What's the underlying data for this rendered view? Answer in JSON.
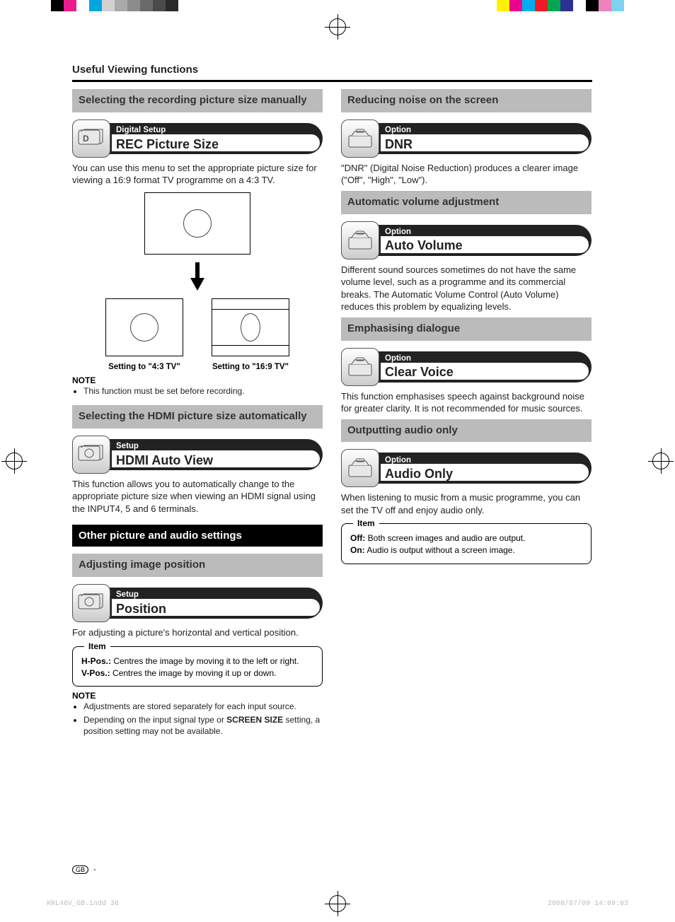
{
  "color_bar": {
    "left_segments": [
      {
        "w": 72,
        "color": "#ffffff"
      },
      {
        "w": 18,
        "color": "#000000"
      },
      {
        "w": 18,
        "color": "#e91e8c"
      },
      {
        "w": 18,
        "color": "#ffffff"
      },
      {
        "w": 18,
        "color": "#00a6e0"
      },
      {
        "w": 18,
        "color": "#d1d1d1"
      },
      {
        "w": 18,
        "color": "#aaaaaa"
      },
      {
        "w": 18,
        "color": "#8c8c8c"
      },
      {
        "w": 18,
        "color": "#6a6a6a"
      },
      {
        "w": 18,
        "color": "#4b4b4b"
      },
      {
        "w": 18,
        "color": "#2a2a2a"
      }
    ],
    "right_segments": [
      {
        "w": 18,
        "color": "#fff200"
      },
      {
        "w": 18,
        "color": "#ec008c"
      },
      {
        "w": 18,
        "color": "#00adef"
      },
      {
        "w": 18,
        "color": "#ed1c24"
      },
      {
        "w": 18,
        "color": "#00a651"
      },
      {
        "w": 18,
        "color": "#2e3192"
      },
      {
        "w": 18,
        "color": "#ffffff"
      },
      {
        "w": 18,
        "color": "#000000"
      },
      {
        "w": 18,
        "color": "#ee82be"
      },
      {
        "w": 18,
        "color": "#7dd2f0"
      },
      {
        "w": 72,
        "color": "#ffffff"
      }
    ]
  },
  "page_title": "Useful Viewing functions",
  "left": {
    "h1": "Selecting the recording picture size manually",
    "pill1": {
      "cat": "Digital Setup",
      "title": "REC Picture Size"
    },
    "p1": "You can use this menu to set the appropriate picture size for viewing a 16:9 format TV programme on a 4:3 TV.",
    "cap1": "Setting to \"4:3 TV\"",
    "cap2": "Setting to \"16:9 TV\"",
    "note1_label": "NOTE",
    "note1_b1": "This function must be set before recording.",
    "h2": "Selecting the HDMI picture size automatically",
    "pill2": {
      "cat": "Setup",
      "title": "HDMI Auto View"
    },
    "p2": "This function allows you to automatically change to the appropriate picture size when viewing an HDMI signal using the INPUT4, 5 and 6 terminals.",
    "h3_black": "Other picture and audio settings",
    "h4": "Adjusting image position",
    "pill3": {
      "cat": "Setup",
      "title": "Position"
    },
    "p3": "For adjusting a picture's horizontal and vertical position.",
    "itembox1": {
      "legend": "Item",
      "r1a": "H-Pos.:",
      "r1b": " Centres the image by moving it to the left or right.",
      "r2a": "V-Pos.:",
      "r2b": " Centres the image by moving it up or down."
    },
    "note2_label": "NOTE",
    "note2_b1": "Adjustments are stored separately for each input source.",
    "note2_b2a": "Depending on the input signal type or ",
    "note2_b2b": "SCREEN SIZE",
    "note2_b2c": " setting, a position setting may not be available."
  },
  "right": {
    "h1": "Reducing noise on the screen",
    "pill1": {
      "cat": "Option",
      "title": "DNR"
    },
    "p1": "\"DNR\" (Digital Noise Reduction) produces a clearer image (\"Off\", \"High\", \"Low\").",
    "h2": "Automatic volume adjustment",
    "pill2": {
      "cat": "Option",
      "title": "Auto Volume"
    },
    "p2": "Different sound sources sometimes do not have the same volume level, such as a programme and its commercial breaks. The Automatic Volume Control (Auto Volume) reduces this problem by equalizing levels.",
    "h3": "Emphasising dialogue",
    "pill3": {
      "cat": "Option",
      "title": "Clear Voice"
    },
    "p3": "This function emphasises speech against background noise for greater clarity. It is not recommended for music sources.",
    "h4": "Outputting audio only",
    "pill4": {
      "cat": "Option",
      "title": "Audio Only"
    },
    "p4": "When listening to music from a music programme, you can set the TV off and enjoy audio only.",
    "itembox1": {
      "legend": "Item",
      "r1a": "Off:",
      "r1b": " Both screen images and audio are output.",
      "r2a": "On:",
      "r2b": " Audio is output without a screen image."
    }
  },
  "footer": {
    "gb": "GB",
    "dash": " -"
  },
  "slug_left": "KRL46V_GB.indd   36",
  "slug_right": "2008/07/09   14:09:03"
}
